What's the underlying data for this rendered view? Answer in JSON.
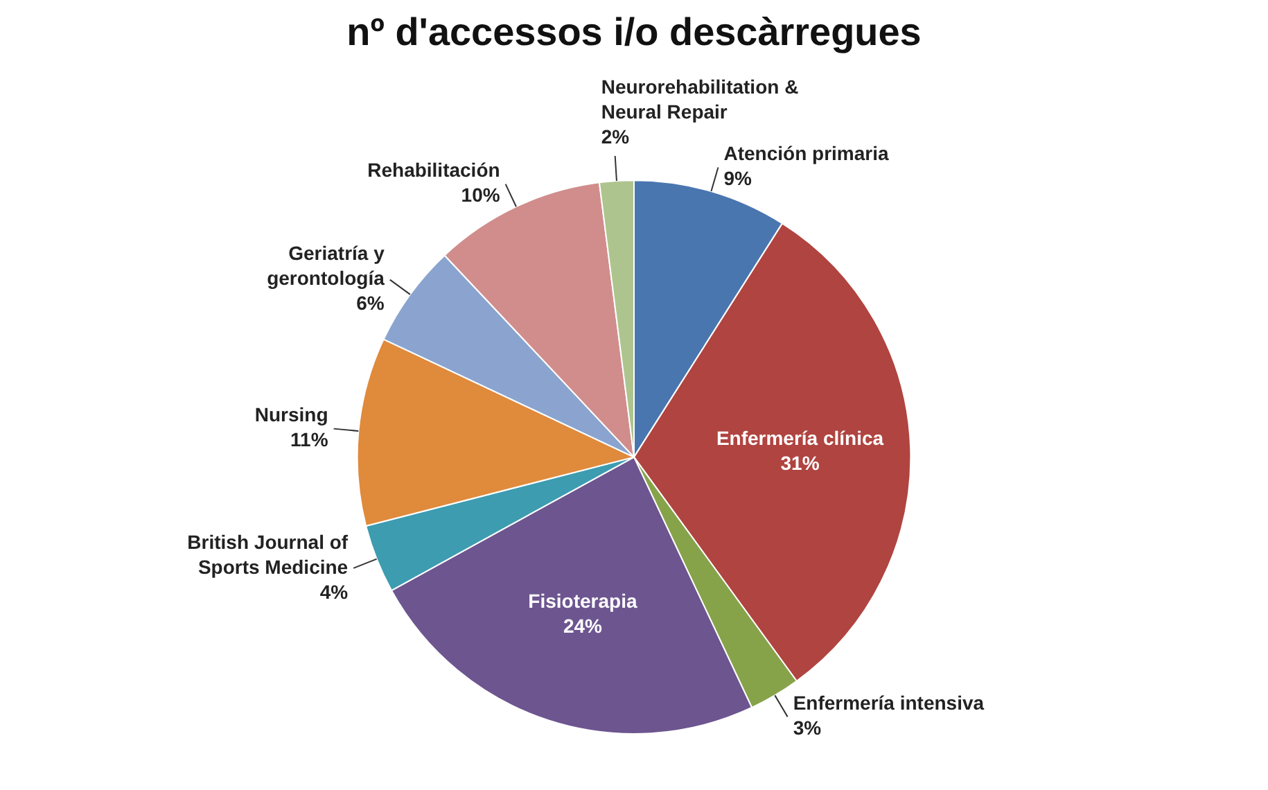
{
  "chart_data": {
    "type": "pie",
    "title": "nº d'accessos i/o descàrregues",
    "categories": [
      "Atención primaria",
      "Enfermería clínica",
      "Enfermería intensiva",
      "Fisioterapia",
      "British Journal of Sports Medicine",
      "Nursing",
      "Geriatría y gerontología",
      "Rehabilitación",
      "Neurorehabilitation & Neural Repair"
    ],
    "values": [
      9,
      31,
      3,
      24,
      4,
      11,
      6,
      10,
      2
    ],
    "value_labels": [
      "9%",
      "31%",
      "3%",
      "24%",
      "4%",
      "11%",
      "6%",
      "10%",
      "2%"
    ],
    "colors": [
      "#4a76b0",
      "#b04440",
      "#86a34a",
      "#6d5590",
      "#3d9cb0",
      "#e08a3c",
      "#8aa4cf",
      "#d08d8c",
      "#aec48e"
    ],
    "legend": false
  }
}
